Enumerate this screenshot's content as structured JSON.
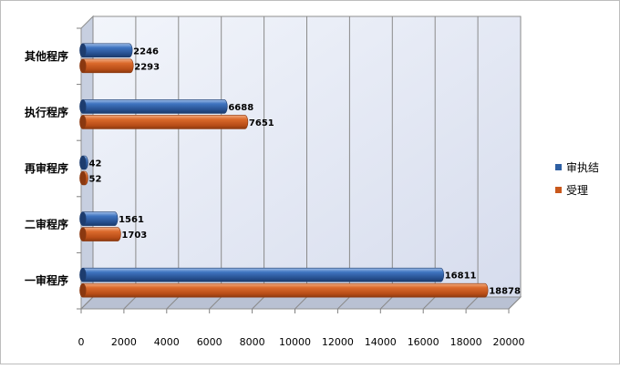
{
  "chart_data": {
    "type": "bar",
    "orientation": "horizontal",
    "categories": [
      "其他程序",
      "执行程序",
      "再审程序",
      "二审程序",
      "一审程序"
    ],
    "series": [
      {
        "name": "审执结",
        "color": "#2e5fa3",
        "values": [
          2246,
          6688,
          42,
          1561,
          16811
        ]
      },
      {
        "name": "受理",
        "color": "#c9581c",
        "values": [
          2293,
          7651,
          52,
          1703,
          18878
        ]
      }
    ],
    "xlim": [
      0,
      20000
    ],
    "xticks": [
      0,
      2000,
      4000,
      6000,
      8000,
      10000,
      12000,
      14000,
      16000,
      18000,
      20000
    ],
    "grid": true,
    "legend_position": "right"
  }
}
